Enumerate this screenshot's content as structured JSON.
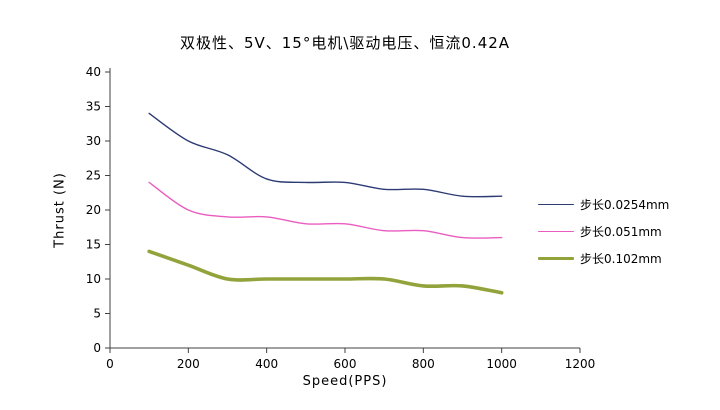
{
  "chart_data": {
    "type": "line",
    "title": "双极性、5V、15°电机\\驱动电压、恒流0.42A",
    "xlabel": "Speed(PPS)",
    "ylabel": "Thrust (N)",
    "xlim": [
      0,
      1200
    ],
    "ylim": [
      0,
      40
    ],
    "x_ticks": [
      0,
      200,
      400,
      600,
      800,
      1000,
      1200
    ],
    "y_ticks": [
      0,
      5,
      10,
      15,
      20,
      25,
      30,
      35,
      40
    ],
    "grid": false,
    "legend_position": "right",
    "x": [
      100,
      200,
      300,
      400,
      500,
      600,
      700,
      800,
      900,
      1000
    ],
    "series": [
      {
        "name": "步长0.0254mm",
        "color": "#2c3b74",
        "width": 1.4,
        "values": [
          34,
          30,
          28,
          24.5,
          24,
          24,
          23,
          23,
          22,
          22
        ]
      },
      {
        "name": "步长0.051mm",
        "color": "#ea5cc0",
        "width": 1.4,
        "values": [
          24,
          20,
          19,
          19,
          18,
          18,
          17,
          17,
          16,
          16
        ]
      },
      {
        "name": "步长0.102mm",
        "color": "#93a33c",
        "width": 3.6,
        "values": [
          14,
          12,
          10,
          10,
          10,
          10,
          10,
          9,
          9,
          8
        ]
      }
    ],
    "axis_color": "#404040"
  }
}
